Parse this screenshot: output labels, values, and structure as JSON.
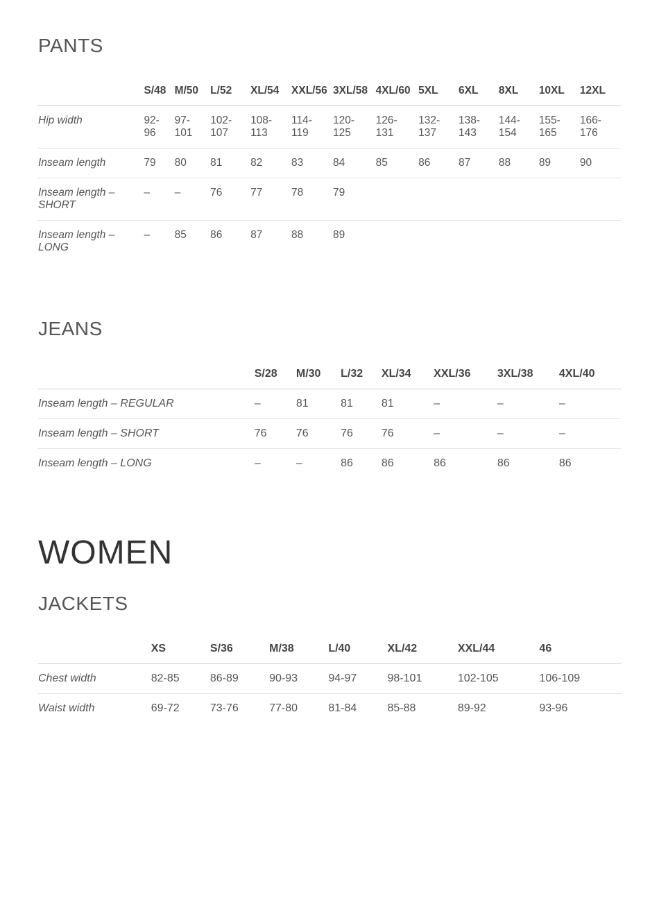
{
  "pants": {
    "title": "PANTS",
    "headers": [
      "S/48",
      "M/50",
      "L/52",
      "XL/54",
      "XXL/56",
      "3XL/58",
      "4XL/60",
      "5XL",
      "6XL",
      "8XL",
      "10XL",
      "12XL"
    ],
    "rows": [
      {
        "label": "Hip width",
        "cells": [
          "92-96",
          "97-101",
          "102-107",
          "108-113",
          "114-119",
          "120-125",
          "126-131",
          "132-137",
          "138-143",
          "144-154",
          "155-165",
          "166-176"
        ]
      },
      {
        "label": "Inseam length",
        "cells": [
          "79",
          "80",
          "81",
          "82",
          "83",
          "84",
          "85",
          "86",
          "87",
          "88",
          "89",
          "90"
        ]
      },
      {
        "label": "Inseam length – SHORT",
        "cells": [
          "–",
          "–",
          "76",
          "77",
          "78",
          "79",
          "",
          "",
          "",
          "",
          "",
          ""
        ]
      },
      {
        "label": "Inseam length – LONG",
        "cells": [
          "–",
          "85",
          "86",
          "87",
          "88",
          "89",
          "",
          "",
          "",
          "",
          "",
          ""
        ]
      }
    ]
  },
  "jeans": {
    "title": "JEANS",
    "headers": [
      "S/28",
      "M/30",
      "L/32",
      "XL/34",
      "XXL/36",
      "3XL/38",
      "4XL/40"
    ],
    "rows": [
      {
        "label": "Inseam length – REGULAR",
        "cells": [
          "–",
          "81",
          "81",
          "81",
          "–",
          "–",
          "–"
        ]
      },
      {
        "label": "Inseam length – SHORT",
        "cells": [
          "76",
          "76",
          "76",
          "76",
          "–",
          "–",
          "–"
        ]
      },
      {
        "label": "Inseam length – LONG",
        "cells": [
          "–",
          "–",
          "86",
          "86",
          "86",
          "86",
          "86"
        ]
      }
    ]
  },
  "women_title": "WOMEN",
  "jackets": {
    "title": "JACKETS",
    "headers": [
      "XS",
      "S/36",
      "M/38",
      "L/40",
      "XL/42",
      "XXL/44",
      "46"
    ],
    "rows": [
      {
        "label": "Chest width",
        "cells": [
          "82-85",
          "86-89",
          "90-93",
          "94-97",
          "98-101",
          "102-105",
          "106-109"
        ]
      },
      {
        "label": "Waist width",
        "cells": [
          "69-72",
          "73-76",
          "77-80",
          "81-84",
          "85-88",
          "89-92",
          "93-96"
        ]
      }
    ]
  },
  "style": {
    "heading_color": "#555555",
    "text_color": "#555555",
    "border_color": "#cccccc",
    "row_border_color": "#e2e2e2",
    "bg": "#ffffff",
    "h1_fontsize": 48,
    "h2_fontsize": 28,
    "cell_fontsize": 16
  }
}
